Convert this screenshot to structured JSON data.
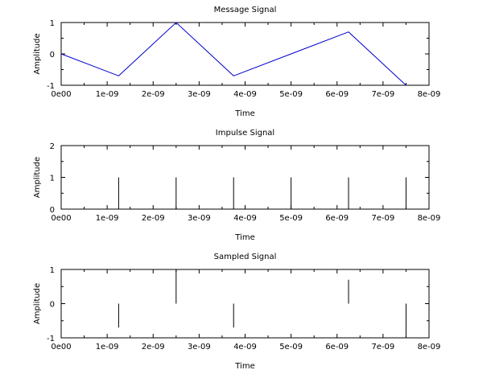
{
  "chart_data": [
    {
      "type": "line",
      "title": "Message Signal",
      "xlabel": "Time",
      "ylabel": "Amplitude",
      "xlim": [
        0,
        8e-09
      ],
      "ylim": [
        -1,
        1
      ],
      "x_ticks": [
        0,
        1e-09,
        2e-09,
        3e-09,
        4e-09,
        5e-09,
        6e-09,
        7e-09,
        8e-09
      ],
      "x_tick_labels": [
        "0e00",
        "1e-09",
        "2e-09",
        "3e-09",
        "4e-09",
        "5e-09",
        "6e-09",
        "7e-09",
        "8e-09"
      ],
      "y_ticks": [
        -1,
        0,
        1
      ],
      "y_tick_labels": [
        "-1",
        "0",
        "1"
      ],
      "grid": false,
      "color": "#0000cc",
      "series": [
        {
          "x": [
            0,
            1.25e-09,
            2.5e-09,
            3.75e-09,
            5e-09,
            6.25e-09,
            7.5e-09
          ],
          "y": [
            0,
            -0.7,
            1,
            -0.7,
            0,
            0.7,
            -1
          ]
        }
      ]
    },
    {
      "type": "stem",
      "title": "Impulse Signal",
      "xlabel": "Time",
      "ylabel": "Amplitude",
      "xlim": [
        0,
        8e-09
      ],
      "ylim": [
        0,
        2
      ],
      "x_ticks": [
        0,
        1e-09,
        2e-09,
        3e-09,
        4e-09,
        5e-09,
        6e-09,
        7e-09,
        8e-09
      ],
      "x_tick_labels": [
        "0e00",
        "1e-09",
        "2e-09",
        "3e-09",
        "4e-09",
        "5e-09",
        "6e-09",
        "7e-09",
        "8e-09"
      ],
      "y_ticks": [
        0,
        1,
        2
      ],
      "y_tick_labels": [
        "0",
        "1",
        "2"
      ],
      "grid": false,
      "color": "#000000",
      "series": [
        {
          "x": [
            1.25e-09,
            2.5e-09,
            3.75e-09,
            5e-09,
            6.25e-09,
            7.5e-09
          ],
          "y": [
            1,
            1,
            1,
            1,
            1,
            1
          ]
        }
      ]
    },
    {
      "type": "stem",
      "title": "Sampled Signal",
      "xlabel": "Time",
      "ylabel": "Amplitude",
      "xlim": [
        0,
        8e-09
      ],
      "ylim": [
        -1,
        1
      ],
      "x_ticks": [
        0,
        1e-09,
        2e-09,
        3e-09,
        4e-09,
        5e-09,
        6e-09,
        7e-09,
        8e-09
      ],
      "x_tick_labels": [
        "0e00",
        "1e-09",
        "2e-09",
        "3e-09",
        "4e-09",
        "5e-09",
        "6e-09",
        "7e-09",
        "8e-09"
      ],
      "y_ticks": [
        -1,
        0,
        1
      ],
      "y_tick_labels": [
        "-1",
        "0",
        "1"
      ],
      "grid": false,
      "color": "#000000",
      "series": [
        {
          "x": [
            1.25e-09,
            2.5e-09,
            3.75e-09,
            5e-09,
            6.25e-09,
            7.5e-09
          ],
          "y": [
            -0.7,
            1,
            -0.7,
            0,
            0.7,
            -1
          ]
        }
      ]
    }
  ]
}
